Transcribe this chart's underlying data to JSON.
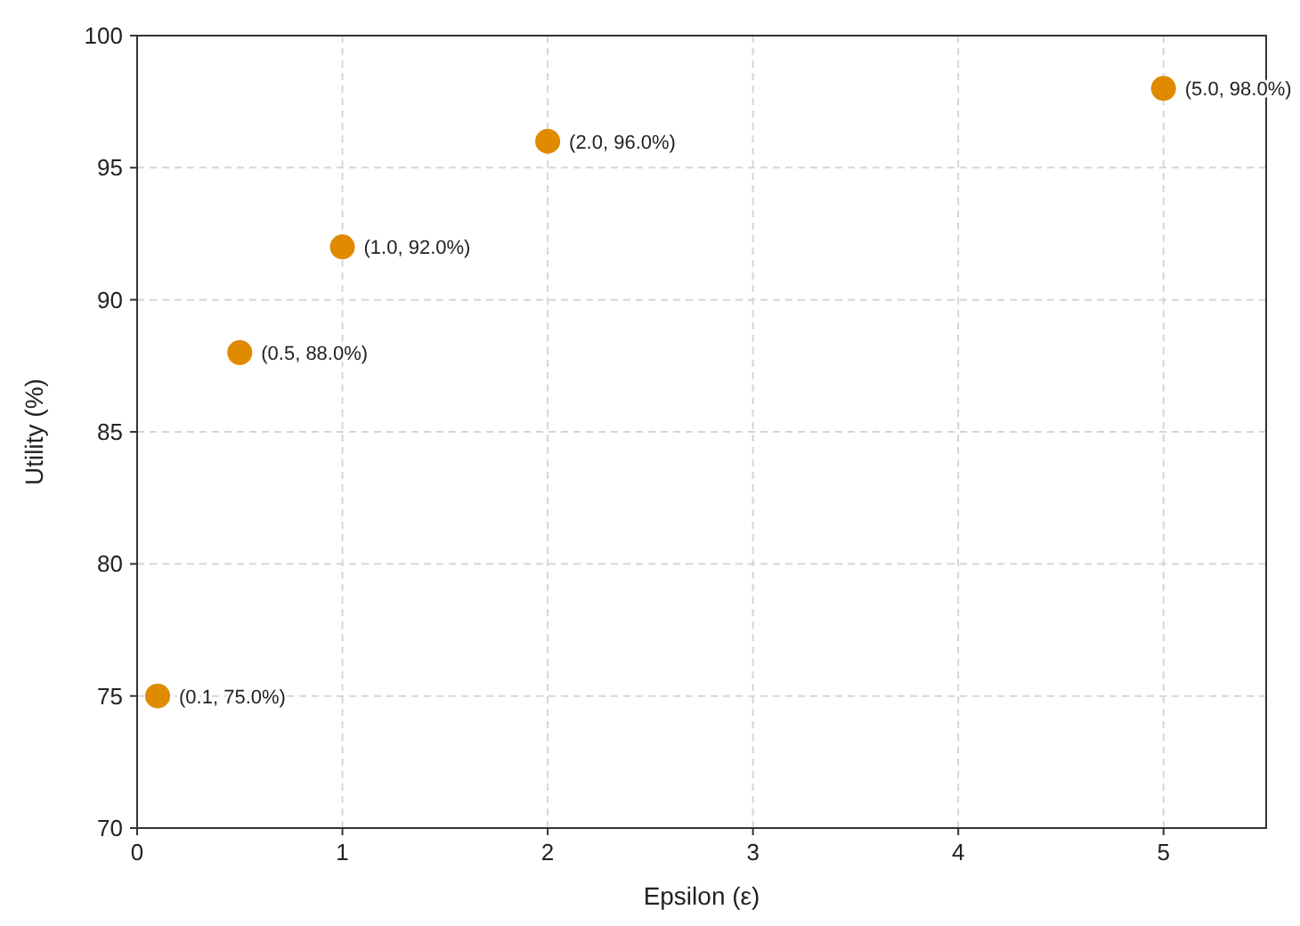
{
  "chart_data": {
    "type": "scatter",
    "xlabel": "Epsilon (ε)",
    "ylabel": "Utility (%)",
    "x": [
      0.1,
      0.5,
      1,
      2,
      5
    ],
    "series": [
      {
        "color": "#e08a00",
        "values": [
          75,
          88,
          92,
          96,
          98
        ]
      }
    ],
    "xlim": [
      0,
      5.5
    ],
    "xticks": [
      0,
      1,
      2,
      3,
      4,
      5
    ],
    "ylim": [
      70,
      100
    ],
    "yticks": [
      70,
      75,
      80,
      85,
      90,
      95,
      100
    ],
    "grid": true,
    "marker": "circle",
    "annotations": [
      {
        "text": "(0.1, 75.0%)",
        "x": 0.1,
        "y": 75
      },
      {
        "text": "(0.5, 88.0%)",
        "x": 0.5,
        "y": 88
      },
      {
        "text": "(1.0, 92.0%)",
        "x": 1,
        "y": 92
      },
      {
        "text": "(2.0, 96.0%)",
        "x": 2,
        "y": 96
      },
      {
        "text": "(5.0, 98.0%)",
        "x": 5,
        "y": 98
      }
    ]
  }
}
